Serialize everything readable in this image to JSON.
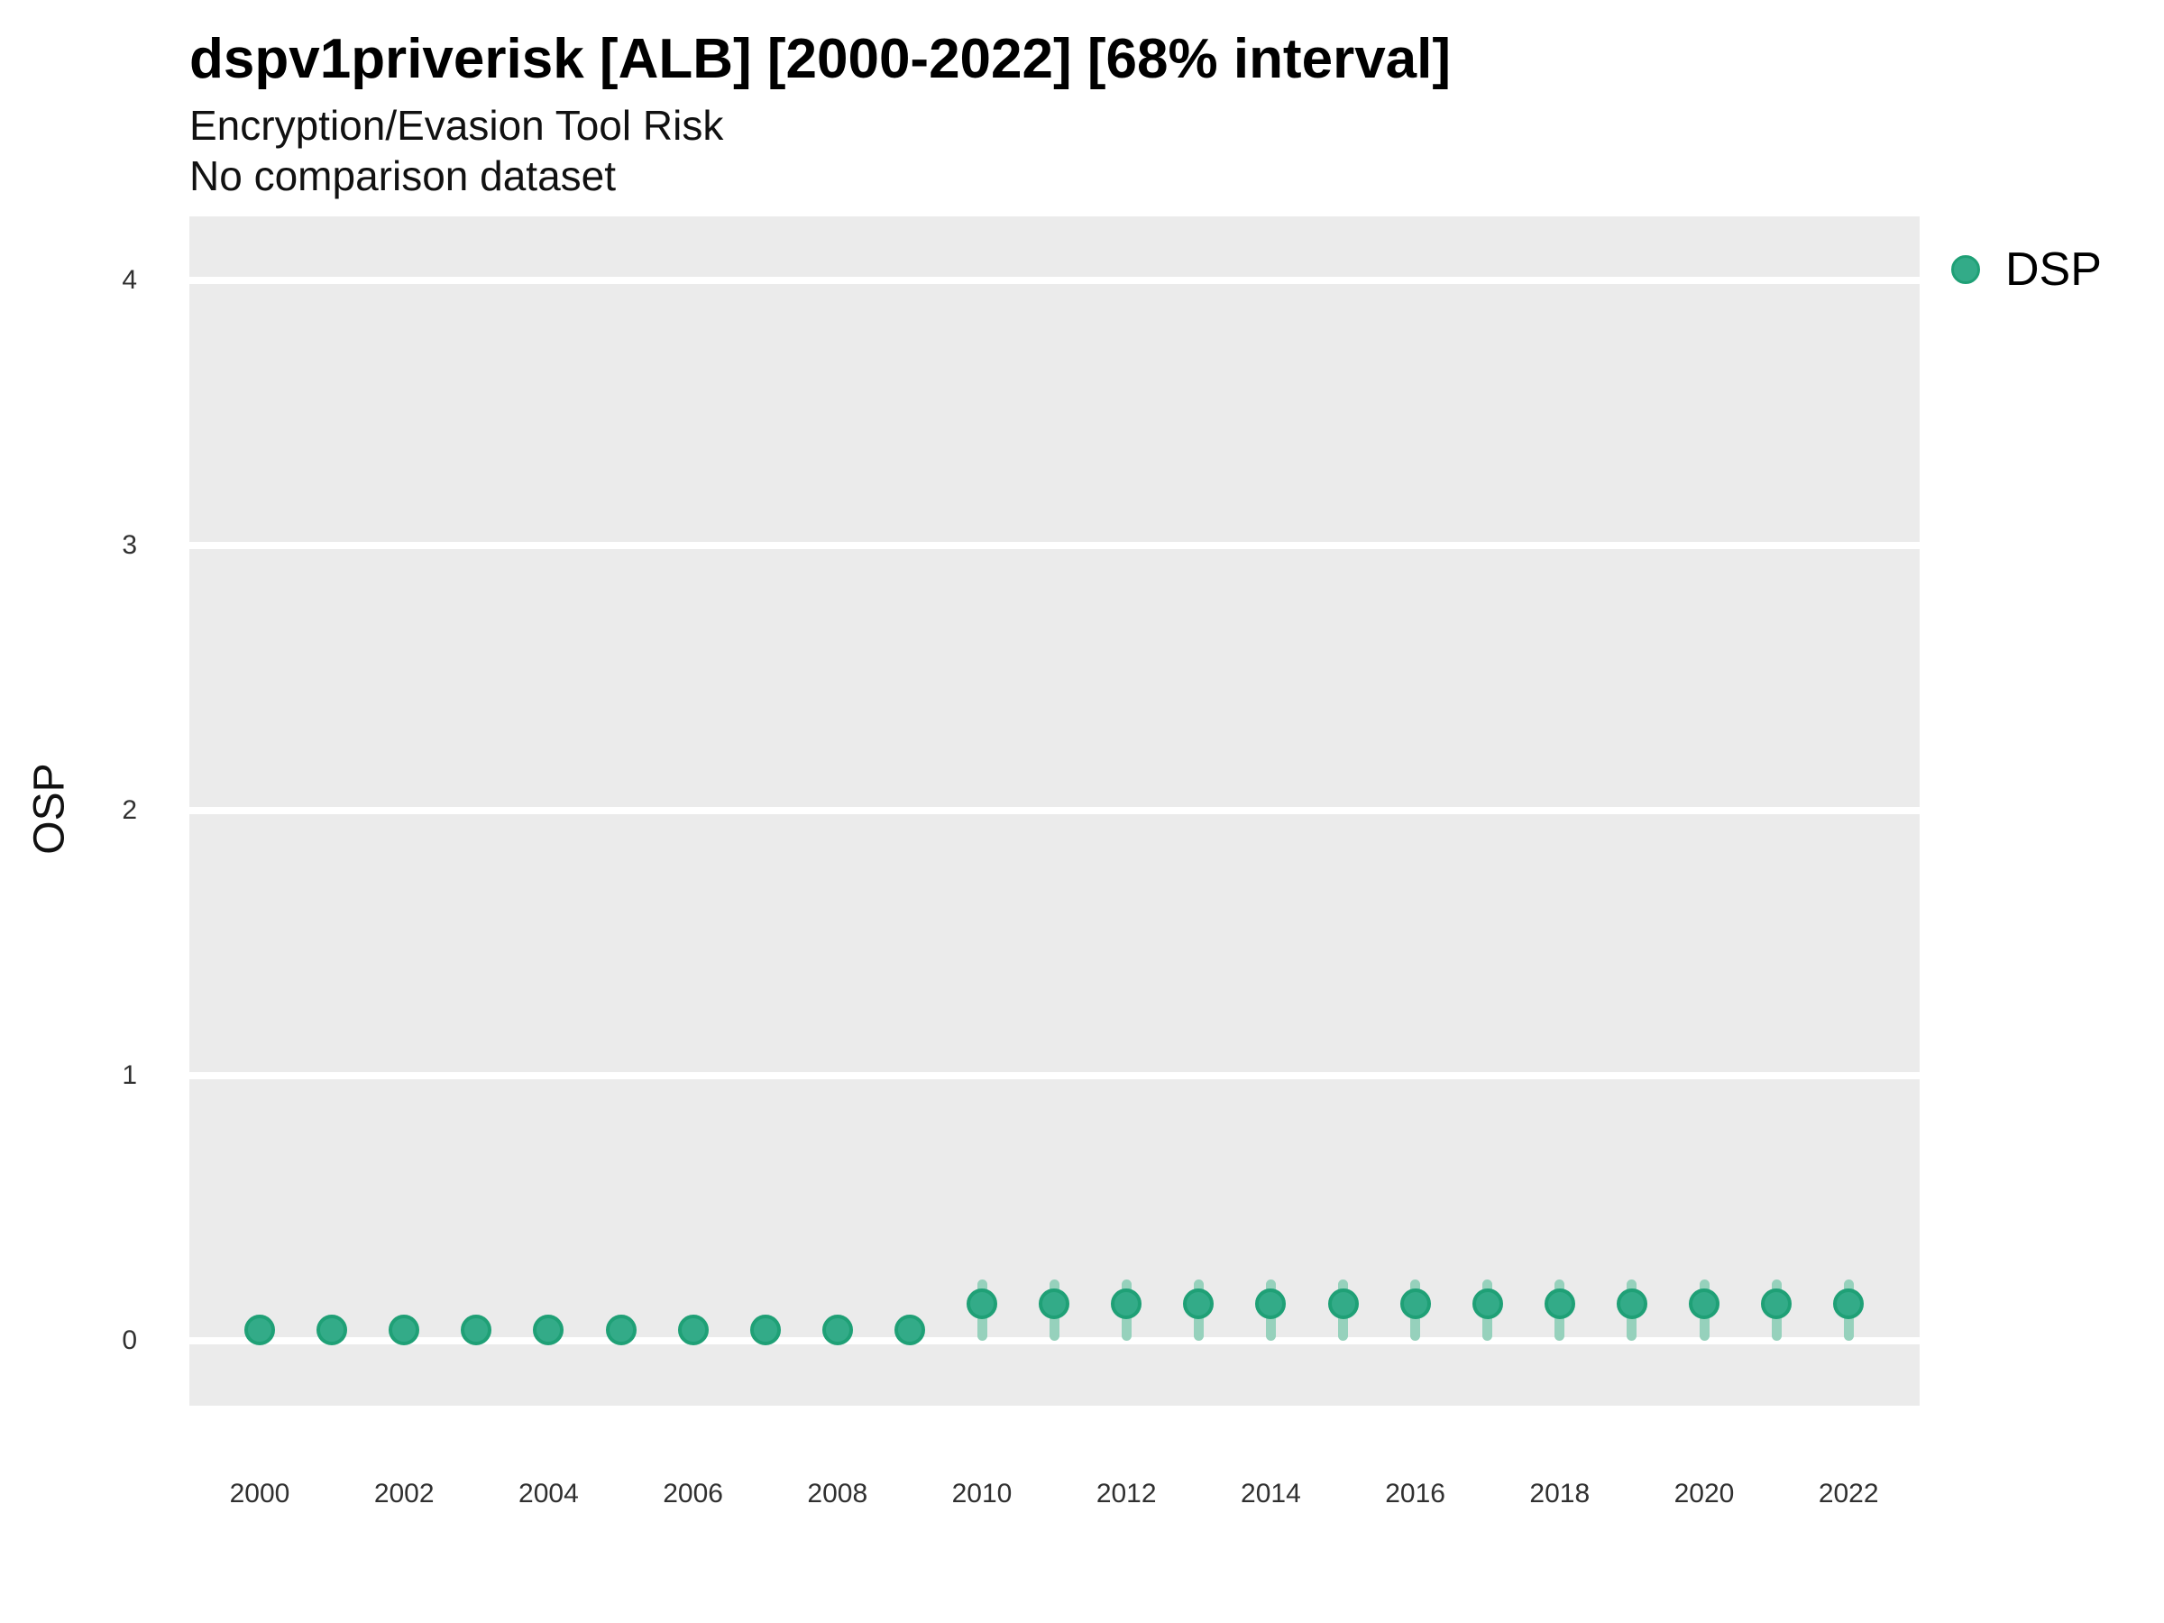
{
  "header": {
    "title": "dspv1priverisk [ALB] [2000-2022] [68% interval]",
    "subtitle": "Encryption/Evasion Tool Risk",
    "subtitle2": "No comparison dataset"
  },
  "legend": {
    "position": "right",
    "items": [
      {
        "label": "DSP",
        "swatch": "legend-dot-icon"
      }
    ]
  },
  "colors": {
    "point_fill": "#33ab88",
    "point_border": "#1fa076",
    "errorbar": "#96d1bc",
    "panel_background": "#ebebeb",
    "gridline": "#ffffff",
    "tick_text": "#303030"
  },
  "chart_data": {
    "type": "scatter",
    "title": "dspv1priverisk [ALB] [2000-2022] [68% interval]",
    "subtitle": "Encryption/Evasion Tool Risk",
    "note": "No comparison dataset",
    "xlabel": "",
    "ylabel": "OSP",
    "x_ticks": [
      2000,
      2002,
      2004,
      2006,
      2008,
      2010,
      2012,
      2014,
      2016,
      2018,
      2020,
      2022
    ],
    "y_ticks": [
      0,
      1,
      2,
      3,
      4
    ],
    "ylim": [
      -0.25,
      4.25
    ],
    "xlim": [
      1999,
      2023
    ],
    "grid": "horizontal-major-only",
    "legend_position": "right",
    "interval_level": "68%",
    "x": [
      2000,
      2001,
      2002,
      2003,
      2004,
      2005,
      2006,
      2007,
      2008,
      2009,
      2010,
      2011,
      2012,
      2013,
      2014,
      2015,
      2016,
      2017,
      2018,
      2019,
      2020,
      2021,
      2022
    ],
    "series": [
      {
        "name": "DSP",
        "values": [
          0.04,
          0.04,
          0.04,
          0.04,
          0.04,
          0.04,
          0.04,
          0.04,
          0.04,
          0.04,
          0.14,
          0.14,
          0.14,
          0.14,
          0.14,
          0.14,
          0.14,
          0.14,
          0.14,
          0.14,
          0.14,
          0.14,
          0.14
        ],
        "lower": [
          0.01,
          0.01,
          0.01,
          0.01,
          0.01,
          0.01,
          0.01,
          0.01,
          0.01,
          0.01,
          0.0,
          0.0,
          0.0,
          0.0,
          0.0,
          0.0,
          0.0,
          0.0,
          0.0,
          0.0,
          0.0,
          0.0,
          0.0
        ],
        "upper": [
          0.07,
          0.07,
          0.07,
          0.07,
          0.07,
          0.07,
          0.07,
          0.07,
          0.07,
          0.07,
          0.23,
          0.23,
          0.23,
          0.23,
          0.23,
          0.23,
          0.23,
          0.23,
          0.23,
          0.23,
          0.23,
          0.23,
          0.23
        ]
      }
    ]
  }
}
